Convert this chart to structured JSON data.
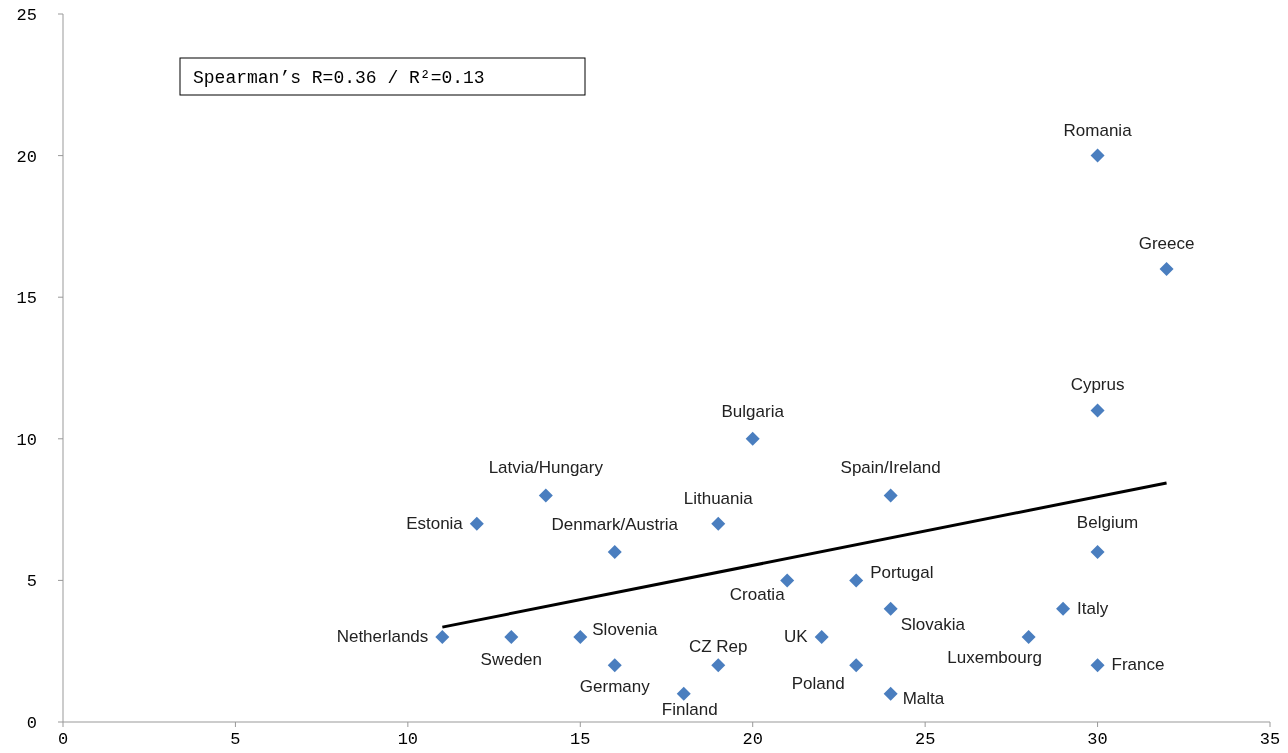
{
  "chart_data": {
    "type": "scatter",
    "marker": "diamond",
    "grid": false,
    "xlim": [
      0,
      35
    ],
    "xticks": [
      0,
      5,
      10,
      15,
      20,
      25,
      30,
      35
    ],
    "ylim": [
      0,
      25
    ],
    "yticks": [
      0,
      5,
      10,
      15,
      20,
      25
    ],
    "series": [
      {
        "color": "#4a7ebf",
        "x": [
          30,
          32,
          30,
          20,
          14,
          24,
          12,
          19,
          16,
          30,
          21,
          23,
          24,
          29,
          11,
          13,
          15,
          22,
          28,
          16,
          19,
          23,
          30,
          18,
          24
        ],
        "values": [
          20,
          16,
          11,
          10,
          8,
          8,
          7,
          7,
          6,
          6,
          5,
          5,
          4,
          4,
          3,
          3,
          3,
          3,
          3,
          2,
          2,
          2,
          2,
          1,
          1
        ]
      },
      {
        "type": "line",
        "marker": "none",
        "color": "#000000",
        "x": [
          11,
          32
        ],
        "values": [
          3.35,
          8.44
        ]
      }
    ],
    "annotations": [
      "Spearman’s R=0.36 / R²=0.13",
      {
        "text": "Romania",
        "x": 30,
        "y": 20
      },
      {
        "text": "Greece",
        "x": 32,
        "y": 16
      },
      {
        "text": "Cyprus",
        "x": 30,
        "y": 11
      },
      {
        "text": "Bulgaria",
        "x": 20,
        "y": 10
      },
      {
        "text": "Latvia/Hungary",
        "x": 14,
        "y": 8
      },
      {
        "text": "Spain/Ireland",
        "x": 24,
        "y": 8
      },
      {
        "text": "Estonia",
        "x": 12,
        "y": 7
      },
      {
        "text": "Lithuania",
        "x": 19,
        "y": 7
      },
      {
        "text": "Denmark/Austria",
        "x": 16,
        "y": 6
      },
      {
        "text": "Belgium",
        "x": 30,
        "y": 6
      },
      {
        "text": "Croatia",
        "x": 21,
        "y": 5
      },
      {
        "text": "Portugal",
        "x": 23,
        "y": 5
      },
      {
        "text": "Slovakia",
        "x": 24,
        "y": 4
      },
      {
        "text": "Italy",
        "x": 29,
        "y": 4
      },
      {
        "text": "Netherlands",
        "x": 11,
        "y": 3
      },
      {
        "text": "Sweden",
        "x": 13,
        "y": 3
      },
      {
        "text": "Slovenia",
        "x": 15,
        "y": 3
      },
      {
        "text": "UK",
        "x": 22,
        "y": 3
      },
      {
        "text": "Luxembourg",
        "x": 28,
        "y": 3
      },
      {
        "text": "Germany",
        "x": 16,
        "y": 2
      },
      {
        "text": "CZ Rep",
        "x": 19,
        "y": 2
      },
      {
        "text": "Poland",
        "x": 23,
        "y": 2
      },
      {
        "text": "France",
        "x": 30,
        "y": 2
      },
      {
        "text": "Finland",
        "x": 18,
        "y": 1
      },
      {
        "text": "Malta",
        "x": 24,
        "y": 1
      }
    ]
  }
}
